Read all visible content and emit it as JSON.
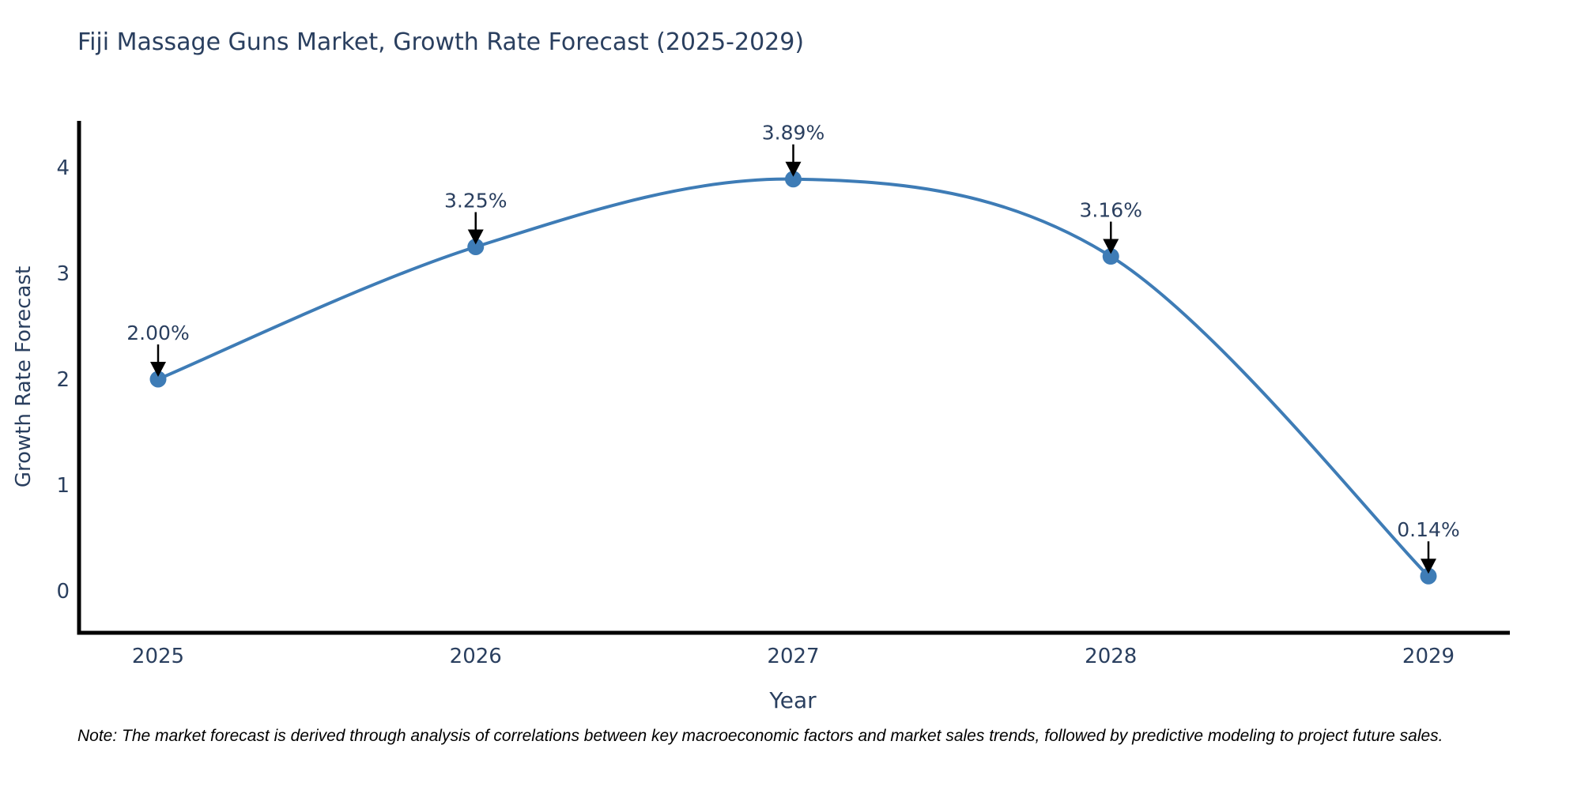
{
  "chart_data": {
    "type": "line",
    "title": "Fiji Massage Guns Market, Growth Rate Forecast (2025-2029)",
    "x": [
      2025,
      2026,
      2027,
      2028,
      2029
    ],
    "values": [
      2.0,
      3.25,
      3.89,
      3.16,
      0.14
    ],
    "point_labels": [
      "2.00%",
      "3.25%",
      "3.89%",
      "3.16%",
      "0.14%"
    ],
    "xlabel": "Year",
    "ylabel": "Growth Rate Forecast",
    "yticks": [
      0,
      1,
      2,
      3,
      4
    ],
    "ylim": [
      -0.4,
      4.43
    ],
    "line_shape": "spline",
    "grid": false,
    "legend": "none",
    "footnote": "Note: The market forecast is derived through analysis of correlations between key macroeconomic factors and market sales trends, followed by predictive modeling to project future sales.",
    "colors": {
      "line": "#3e7cb6",
      "marker": "#3e7cb6",
      "axis": "#000000",
      "text": "#2a3f5f",
      "annotation_arrow": "#000000"
    }
  }
}
